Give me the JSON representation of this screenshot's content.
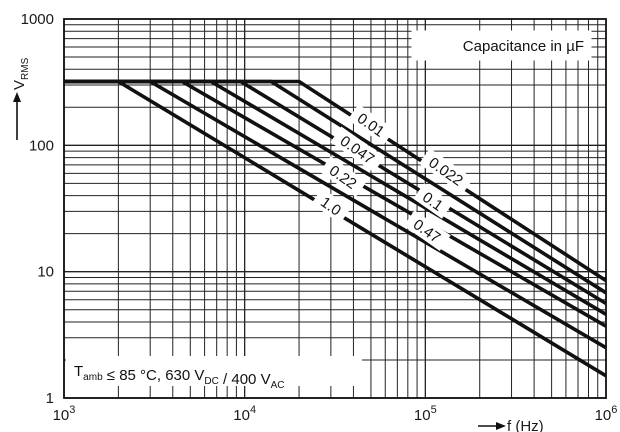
{
  "chart_data": {
    "type": "line",
    "x_scale": "log",
    "y_scale": "log",
    "xlim": [
      1000,
      1000000
    ],
    "ylim": [
      1,
      1000
    ],
    "grid": true,
    "x_ticks": [
      {
        "base": "10",
        "exp": "3"
      },
      {
        "base": "10",
        "exp": "4"
      },
      {
        "base": "10",
        "exp": "5"
      },
      {
        "base": "10",
        "exp": "6"
      }
    ],
    "y_ticks": [
      "1",
      "10",
      "100",
      "1000"
    ],
    "xlabel": "f (Hz)",
    "ylabel": {
      "main": "V",
      "sub": "RMS"
    },
    "legend_title": "Capacitance in µF",
    "condition_note": {
      "parts": [
        {
          "t": "T",
          "sub": "amb"
        },
        {
          "t": " ≤ 85 °C, 630 V",
          "sub": "DC"
        },
        {
          "t": " / 400 V",
          "sub": "AC"
        }
      ]
    },
    "series": [
      {
        "name": "0.01",
        "points": [
          [
            1000,
            320
          ],
          [
            20000,
            320
          ],
          [
            1000000,
            8.5
          ]
        ]
      },
      {
        "name": "0.022",
        "points": [
          [
            1000,
            320
          ],
          [
            14000,
            320
          ],
          [
            1000000,
            6.8
          ]
        ]
      },
      {
        "name": "0.047",
        "points": [
          [
            1000,
            320
          ],
          [
            9500,
            320
          ],
          [
            1000000,
            5.6
          ]
        ]
      },
      {
        "name": "0.1",
        "points": [
          [
            1000,
            320
          ],
          [
            6500,
            320
          ],
          [
            1000000,
            4.6
          ]
        ]
      },
      {
        "name": "0.22",
        "points": [
          [
            1000,
            320
          ],
          [
            4500,
            320
          ],
          [
            1000000,
            3.7
          ]
        ]
      },
      {
        "name": "0.47",
        "points": [
          [
            1000,
            320
          ],
          [
            3000,
            320
          ],
          [
            1000000,
            2.5
          ]
        ]
      },
      {
        "name": "1.0",
        "points": [
          [
            1000,
            320
          ],
          [
            2000,
            320
          ],
          [
            1000000,
            1.5
          ]
        ]
      }
    ],
    "curve_labels": [
      {
        "name": "0.01",
        "at": [
          50000,
          145
        ],
        "rotate": 35
      },
      {
        "name": "0.047",
        "at": [
          42000,
          92
        ],
        "rotate": 35
      },
      {
        "name": "0.22",
        "at": [
          35000,
          56
        ],
        "rotate": 35
      },
      {
        "name": "1.0",
        "at": [
          30000,
          33
        ],
        "rotate": 35
      },
      {
        "name": "0.022",
        "at": [
          130000,
          62
        ],
        "rotate": 35
      },
      {
        "name": "0.1",
        "at": [
          110000,
          36
        ],
        "rotate": 35
      },
      {
        "name": "0.47",
        "at": [
          102000,
          21
        ],
        "rotate": 35
      }
    ]
  }
}
